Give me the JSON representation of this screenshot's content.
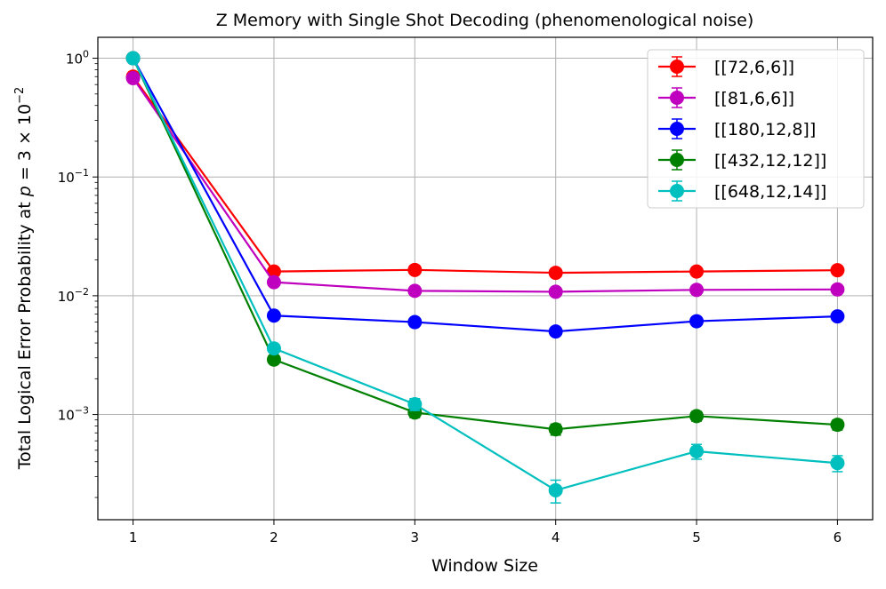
{
  "chart_data": {
    "type": "line",
    "title": "Z Memory with Single Shot Decoding (phenomenological noise)",
    "xlabel": "Window Size",
    "ylabel": {
      "prefix": "Total Logical Error Probability at ",
      "var": "p",
      "eq": " = 3 × 10",
      "exp": "−2"
    },
    "x": [
      1,
      2,
      3,
      4,
      5,
      6
    ],
    "x_ticks": [
      "1",
      "2",
      "3",
      "4",
      "5",
      "6"
    ],
    "xlim": [
      0.75,
      6.25
    ],
    "y_scale": "log",
    "ylim": [
      0.00013,
      1.5
    ],
    "y_ticks": [
      {
        "value": 1,
        "base": "10",
        "exp": "0"
      },
      {
        "value": 0.1,
        "base": "10",
        "exp": "−1"
      },
      {
        "value": 0.01,
        "base": "10",
        "exp": "−2"
      },
      {
        "value": 0.001,
        "base": "10",
        "exp": "−3"
      }
    ],
    "grid": true,
    "legend_position": "top-right",
    "series": [
      {
        "name": "[[72,6,6]]",
        "color": "#ff0000",
        "values": [
          0.7,
          0.016,
          0.0165,
          0.0156,
          0.016,
          0.0164
        ],
        "errors": [
          0.02,
          0.0006,
          0.0006,
          0.0006,
          0.0006,
          0.0006
        ]
      },
      {
        "name": "[[81,6,6]]",
        "color": "#bf00bf",
        "values": [
          0.68,
          0.013,
          0.011,
          0.0108,
          0.0112,
          0.0113
        ],
        "errors": [
          0.02,
          0.0005,
          0.0005,
          0.0005,
          0.0005,
          0.0005
        ]
      },
      {
        "name": "[[180,12,8]]",
        "color": "#0000ff",
        "values": [
          1.0,
          0.0068,
          0.006,
          0.005,
          0.0061,
          0.0067
        ],
        "errors": [
          0.01,
          0.0004,
          0.0004,
          0.0003,
          0.0004,
          0.0004
        ]
      },
      {
        "name": "[[432,12,12]]",
        "color": "#008000",
        "values": [
          1.0,
          0.0029,
          0.00104,
          0.00075,
          0.00097,
          0.00082
        ],
        "errors": [
          0.01,
          0.00015,
          0.0001,
          8e-05,
          9e-05,
          8e-05
        ]
      },
      {
        "name": "[[648,12,14]]",
        "color": "#00bfbf",
        "values": [
          1.0,
          0.0036,
          0.00122,
          0.00023,
          0.00049,
          0.00039
        ],
        "errors": [
          0.01,
          0.0002,
          0.00014,
          5e-05,
          7e-05,
          6e-05
        ]
      }
    ]
  }
}
